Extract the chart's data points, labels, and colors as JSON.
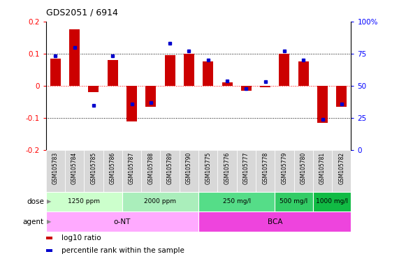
{
  "title": "GDS2051 / 6914",
  "samples": [
    "GSM105783",
    "GSM105784",
    "GSM105785",
    "GSM105786",
    "GSM105787",
    "GSM105788",
    "GSM105789",
    "GSM105790",
    "GSM105775",
    "GSM105776",
    "GSM105777",
    "GSM105778",
    "GSM105779",
    "GSM105780",
    "GSM105781",
    "GSM105782"
  ],
  "log10_ratio": [
    0.085,
    0.175,
    -0.02,
    0.08,
    -0.11,
    -0.065,
    0.095,
    0.1,
    0.075,
    0.01,
    -0.015,
    -0.005,
    0.1,
    0.075,
    -0.115,
    -0.065
  ],
  "percentile_rank": [
    73,
    80,
    35,
    73,
    36,
    37,
    83,
    77,
    70,
    54,
    48,
    53,
    77,
    70,
    24,
    36
  ],
  "bar_color": "#cc0000",
  "dot_color": "#0000cc",
  "ylim": [
    -0.2,
    0.2
  ],
  "right_ylim": [
    0,
    100
  ],
  "right_yticks": [
    0,
    25,
    50,
    75,
    100
  ],
  "right_yticklabels": [
    "0",
    "25",
    "50",
    "75",
    "100%"
  ],
  "left_yticks": [
    -0.2,
    -0.1,
    0.0,
    0.1,
    0.2
  ],
  "left_yticklabels": [
    "-0.2",
    "-0.1",
    "0",
    "0.1",
    "0.2"
  ],
  "hlines": [
    0.1,
    0.0,
    -0.1
  ],
  "hline_colors": [
    "black",
    "red",
    "black"
  ],
  "hline_styles": [
    "dotted",
    "dotted",
    "dotted"
  ],
  "dose_groups": [
    {
      "label": "1250 ppm",
      "start": 0,
      "end": 4,
      "color": "#ccffcc"
    },
    {
      "label": "2000 ppm",
      "start": 4,
      "end": 8,
      "color": "#aaeebb"
    },
    {
      "label": "250 mg/l",
      "start": 8,
      "end": 12,
      "color": "#55dd88"
    },
    {
      "label": "500 mg/l",
      "start": 12,
      "end": 14,
      "color": "#33cc66"
    },
    {
      "label": "1000 mg/l",
      "start": 14,
      "end": 16,
      "color": "#11bb44"
    }
  ],
  "agent_groups": [
    {
      "label": "o-NT",
      "start": 0,
      "end": 8,
      "color": "#ffaaff"
    },
    {
      "label": "BCA",
      "start": 8,
      "end": 16,
      "color": "#ee44dd"
    }
  ],
  "dose_label": "dose",
  "agent_label": "agent",
  "legend_items": [
    {
      "color": "#cc0000",
      "label": "log10 ratio"
    },
    {
      "color": "#0000cc",
      "label": "percentile rank within the sample"
    }
  ],
  "background_color": "#ffffff",
  "plot_bg_color": "#ffffff",
  "label_bg_color": "#d8d8d8"
}
